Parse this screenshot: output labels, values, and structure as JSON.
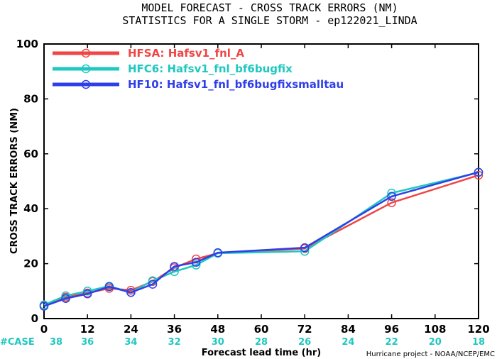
{
  "header": {
    "title_line1": "MODEL FORECAST - CROSS TRACK ERRORS (NM)",
    "title_line2": "STATISTICS FOR A SINGLE STORM - ep122021_LINDA"
  },
  "footer": {
    "case_label": "#CASE",
    "credit": "Hurricane project - NOAA/NCEP/EMC"
  },
  "chart_data": {
    "type": "line",
    "title": "MODEL FORECAST - CROSS TRACK ERRORS (NM)",
    "subtitle": "STATISTICS FOR A SINGLE STORM - ep122021_LINDA",
    "xlabel": "Forecast lead time (hr)",
    "ylabel": "CROSS TRACK ERRORS (NM)",
    "xlim": [
      0,
      120
    ],
    "ylim": [
      0,
      100
    ],
    "xticks": [
      0,
      12,
      24,
      36,
      48,
      60,
      72,
      84,
      96,
      108,
      120
    ],
    "yticks": [
      0,
      20,
      40,
      60,
      80,
      100
    ],
    "grid": false,
    "legend_position": "top-left",
    "cases": [
      38,
      36,
      34,
      32,
      30,
      28,
      26,
      24,
      22,
      20,
      18
    ],
    "series": [
      {
        "name": "HFSA: Hafsv1_fnl_A",
        "color": "#f04545",
        "x": [
          0,
          6,
          12,
          18,
          24,
          30,
          36,
          42,
          48,
          72,
          96,
          120
        ],
        "values": [
          4.8,
          7.8,
          9.3,
          11.0,
          10.3,
          13.5,
          18.5,
          21.7,
          23.8,
          25.5,
          42.2,
          52.2
        ]
      },
      {
        "name": "HFC6: Hafsv1_fnl_bf6bugfix",
        "color": "#1fc8c0",
        "x": [
          0,
          6,
          12,
          18,
          24,
          30,
          36,
          42,
          48,
          72,
          96,
          120
        ],
        "values": [
          5.0,
          8.3,
          10.0,
          11.8,
          9.5,
          13.8,
          17.1,
          19.5,
          23.8,
          24.5,
          45.7,
          53.2
        ]
      },
      {
        "name": "HF10: Hafsv1_fnl_bf6bugfixsmalltau",
        "color": "#2f3fe8",
        "x": [
          0,
          6,
          12,
          18,
          24,
          30,
          36,
          42,
          48,
          72,
          96,
          120
        ],
        "values": [
          4.5,
          7.3,
          9.0,
          11.6,
          9.5,
          12.5,
          19.0,
          20.5,
          24.0,
          25.8,
          44.5,
          53.3
        ]
      }
    ]
  }
}
